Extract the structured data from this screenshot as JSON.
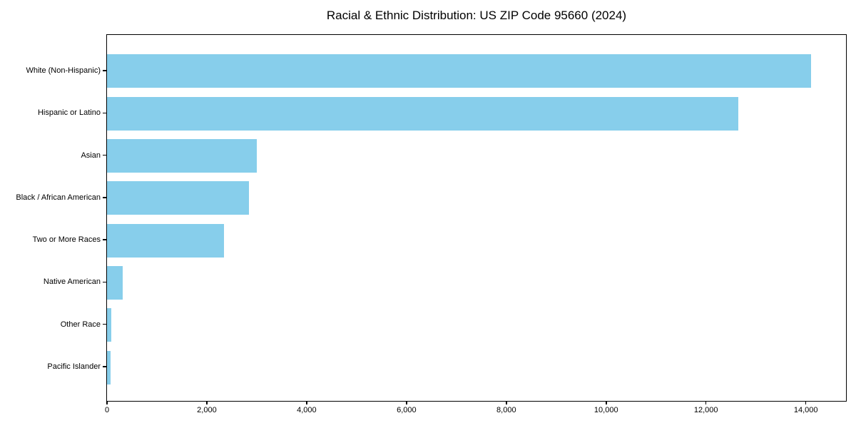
{
  "chart_data": {
    "type": "bar",
    "orientation": "horizontal",
    "title": "Racial & Ethnic Distribution: US ZIP Code 95660 (2024)",
    "categories": [
      "White (Non-Hispanic)",
      "Hispanic or Latino",
      "Asian",
      "Black / African American",
      "Two or More Races",
      "Native American",
      "Other Race",
      "Pacific Islander"
    ],
    "values": [
      14100,
      12650,
      3000,
      2850,
      2350,
      310,
      90,
      70
    ],
    "xlabel": "",
    "ylabel": "",
    "xlim": [
      0,
      14805
    ],
    "x_ticks": [
      0,
      2000,
      4000,
      6000,
      8000,
      10000,
      12000,
      14000
    ],
    "x_tick_labels": [
      "0",
      "2,000",
      "4,000",
      "6,000",
      "8,000",
      "10,000",
      "12,000",
      "14,000"
    ],
    "bar_color": "#87CEEB",
    "background_color": "#FFFFFF",
    "spine_color": "#000000",
    "grid": false,
    "legend": null
  }
}
